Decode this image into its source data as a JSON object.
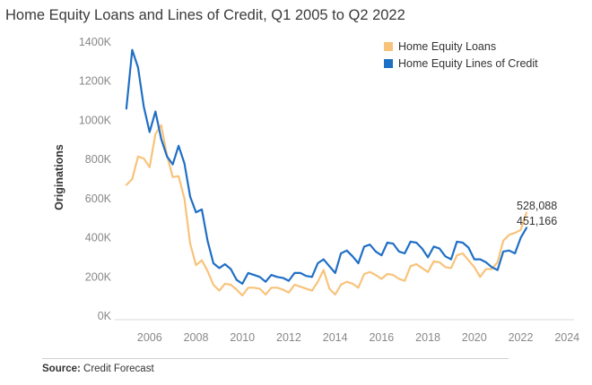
{
  "title": "Home Equity Loans and Lines of Credit, Q1 2005 to Q2 2022",
  "source": {
    "label": "Source:",
    "text": "Credit Forecast"
  },
  "colors": {
    "loans": "#f8c37b",
    "lines": "#1f6fc5",
    "axis_text": "#888888",
    "grid": "#e8e8e8"
  },
  "chart_data": {
    "type": "line",
    "title": "Home Equity Loans and Lines of Credit, Q1 2005 to Q2 2022",
    "xlabel": "",
    "ylabel": "Originations",
    "xlim": [
      2004.5,
      2024.3
    ],
    "ylim": [
      0,
      1450000
    ],
    "x_ticks": [
      2006,
      2008,
      2010,
      2012,
      2014,
      2016,
      2018,
      2020,
      2022,
      2024
    ],
    "x_tick_labels": [
      "2006",
      "2008",
      "2010",
      "2012",
      "2014",
      "2016",
      "2018",
      "2020",
      "2022",
      "2024"
    ],
    "y_ticks": [
      0,
      200000,
      400000,
      600000,
      800000,
      1000000,
      1200000,
      1400000
    ],
    "y_tick_labels": [
      "0K",
      "200K",
      "400K",
      "600K",
      "800K",
      "1000K",
      "1200K",
      "1400K"
    ],
    "legend_position": "top-right",
    "grid": false,
    "x": [
      2005.0,
      2005.25,
      2005.5,
      2005.75,
      2006.0,
      2006.25,
      2006.5,
      2006.75,
      2007.0,
      2007.25,
      2007.5,
      2007.75,
      2008.0,
      2008.25,
      2008.5,
      2008.75,
      2009.0,
      2009.25,
      2009.5,
      2009.75,
      2010.0,
      2010.25,
      2010.5,
      2010.75,
      2011.0,
      2011.25,
      2011.5,
      2011.75,
      2012.0,
      2012.25,
      2012.5,
      2012.75,
      2013.0,
      2013.25,
      2013.5,
      2013.75,
      2014.0,
      2014.25,
      2014.5,
      2014.75,
      2015.0,
      2015.25,
      2015.5,
      2015.75,
      2016.0,
      2016.25,
      2016.5,
      2016.75,
      2017.0,
      2017.25,
      2017.5,
      2017.75,
      2018.0,
      2018.25,
      2018.5,
      2018.75,
      2019.0,
      2019.25,
      2019.5,
      2019.75,
      2020.0,
      2020.25,
      2020.5,
      2020.75,
      2021.0,
      2021.25,
      2021.5,
      2021.75,
      2022.0,
      2022.25
    ],
    "series": [
      {
        "name": "Home Equity Loans",
        "color": "#f8c37b",
        "values": [
          670000,
          700000,
          815000,
          805000,
          760000,
          930000,
          975000,
          820000,
          710000,
          715000,
          600000,
          370000,
          260000,
          285000,
          230000,
          160000,
          130000,
          165000,
          160000,
          135000,
          105000,
          145000,
          145000,
          140000,
          110000,
          145000,
          145000,
          135000,
          120000,
          160000,
          150000,
          140000,
          130000,
          175000,
          235000,
          140000,
          110000,
          160000,
          175000,
          165000,
          145000,
          215000,
          225000,
          210000,
          190000,
          215000,
          210000,
          190000,
          180000,
          255000,
          265000,
          245000,
          225000,
          280000,
          275000,
          250000,
          245000,
          310000,
          320000,
          285000,
          250000,
          200000,
          240000,
          240000,
          275000,
          385000,
          415000,
          425000,
          440000,
          528088
        ]
      },
      {
        "name": "Home Equity Lines of Credit",
        "color": "#1f6fc5",
        "values": [
          1060000,
          1360000,
          1270000,
          1070000,
          940000,
          1045000,
          905000,
          815000,
          775000,
          870000,
          780000,
          610000,
          530000,
          545000,
          385000,
          270000,
          245000,
          265000,
          240000,
          185000,
          165000,
          220000,
          210000,
          200000,
          175000,
          210000,
          200000,
          195000,
          180000,
          220000,
          220000,
          205000,
          200000,
          270000,
          290000,
          255000,
          220000,
          320000,
          335000,
          305000,
          270000,
          355000,
          365000,
          330000,
          310000,
          375000,
          370000,
          330000,
          320000,
          380000,
          375000,
          345000,
          300000,
          355000,
          345000,
          305000,
          290000,
          380000,
          375000,
          350000,
          290000,
          290000,
          275000,
          250000,
          235000,
          330000,
          335000,
          320000,
          400000,
          451166
        ]
      }
    ],
    "end_labels": [
      "528,088",
      "451,166"
    ]
  }
}
